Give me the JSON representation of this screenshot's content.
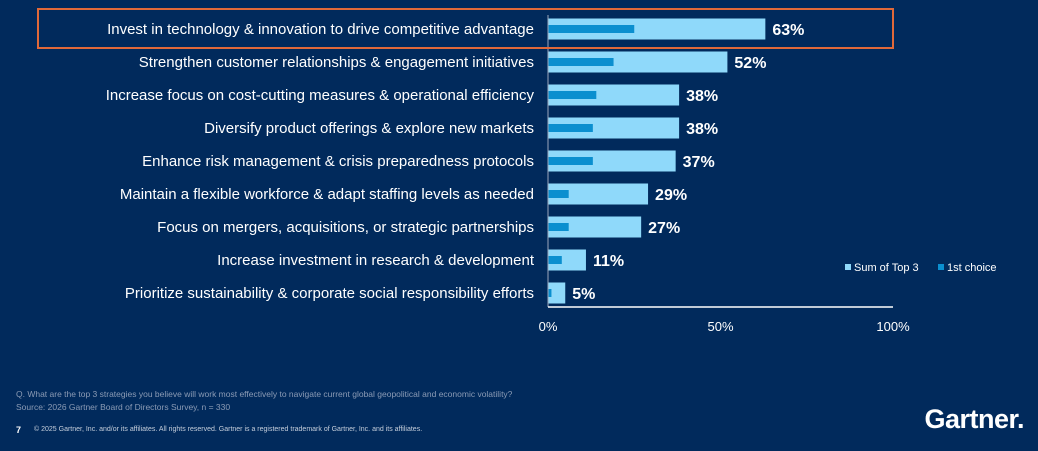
{
  "chart_data": {
    "type": "bar",
    "orientation": "horizontal",
    "categories": [
      "Invest in technology & innovation to drive competitive advantage",
      "Strengthen customer relationships & engagement initiatives",
      "Increase focus on cost-cutting measures & operational efficiency",
      "Diversify product offerings & explore new markets",
      "Enhance risk management & crisis preparedness protocols",
      "Maintain a flexible workforce & adapt staffing levels as needed",
      "Focus on mergers, acquisitions, or strategic partnerships",
      "Increase investment in research & development",
      "Prioritize sustainability & corporate social responsibility efforts"
    ],
    "series": [
      {
        "name": "Sum of Top 3",
        "color": "#8fd9fa",
        "values": [
          63,
          52,
          38,
          38,
          37,
          29,
          27,
          11,
          5
        ]
      },
      {
        "name": "1st choice",
        "color": "#0b8fcf",
        "values": [
          25,
          19,
          14,
          13,
          13,
          6,
          6,
          4,
          1
        ]
      }
    ],
    "data_labels": [
      "63%",
      "52%",
      "38%",
      "38%",
      "37%",
      "29%",
      "27%",
      "11%",
      "5%"
    ],
    "xlim": [
      0,
      100
    ],
    "x_ticks": [
      "0%",
      "50%",
      "100%"
    ],
    "highlighted_category_index": 0,
    "highlight_color": "#e0693a",
    "legend_position": "right",
    "grid": false
  },
  "footer": {
    "question": "Q. What are the top 3 strategies you believe will work most effectively to navigate current global geopolitical and economic volatility?",
    "source": "Source: 2026 Gartner Board of Directors Survey, n = 330",
    "page_number": "7",
    "copyright": "© 2025 Gartner, Inc. and/or its affiliates. All rights reserved. Gartner is a registered trademark of Gartner, Inc. and its affiliates."
  },
  "logo": "Gartner"
}
